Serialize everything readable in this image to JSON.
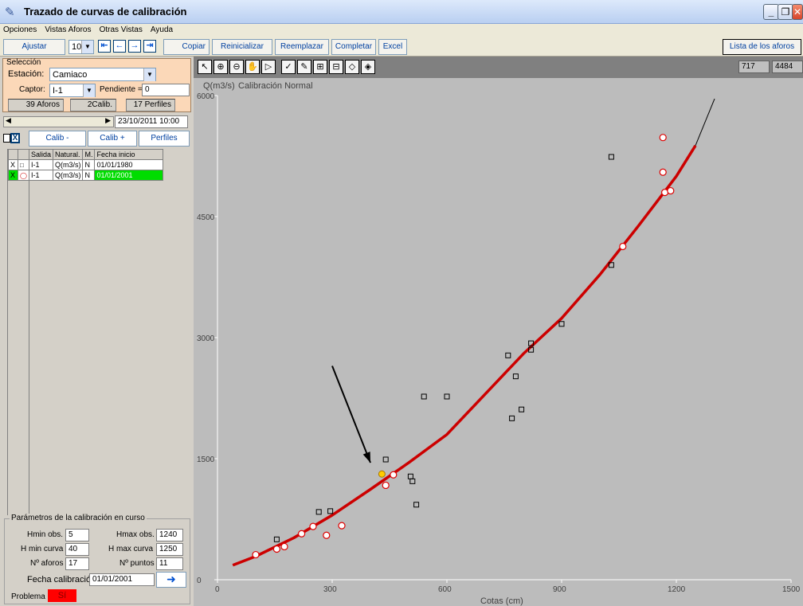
{
  "window": {
    "title": "Trazado de curvas de calibración"
  },
  "menu": [
    "Opciones",
    "Vistas Aforos",
    "Otras Vistas",
    "Ayuda"
  ],
  "toolbar": {
    "ajustar": "Ajustar",
    "step_value": "10",
    "copiar": "Copiar",
    "reinicializar": "Reinicializar",
    "reemplazar": "Reemplazar",
    "completar": "Completar",
    "excel": "Excel",
    "lista": "Lista de los aforos"
  },
  "seleccion": {
    "title": "Selección",
    "estacion_label": "Estación:",
    "estacion_value": "Camiaco",
    "captor_label": "Captor:",
    "captor_value": "I-1",
    "pendiente_label": "Pendiente =",
    "pendiente_value": "0",
    "aforos_count": "39",
    "aforos_label": "Aforos",
    "calib_count": "2",
    "calib_label": "Calib.",
    "perfiles_count": "17",
    "perfiles_label": "Perfiles"
  },
  "timeline": {
    "date": "23/10/2011 10:00"
  },
  "calib_buttons": {
    "minus": "Calib -",
    "plus": "Calib +",
    "perfiles": "Perfiles"
  },
  "table": {
    "headers": [
      "Salida",
      "Natural.",
      "M.",
      "Fecha inicio"
    ],
    "rows": [
      {
        "check": "X",
        "salida": "I-1",
        "natural": "Q(m3/s)",
        "m": "N",
        "fecha": "01/01/1980"
      },
      {
        "check": "X",
        "salida": "I-1",
        "natural": "Q(m3/s)",
        "m": "N",
        "fecha": "01/01/2001"
      }
    ]
  },
  "params": {
    "title": "Parámetros de la calibración en curso",
    "hmin_obs_label": "Hmin obs.",
    "hmin_obs": "5",
    "hmax_obs_label": "Hmax obs.",
    "hmax_obs": "1240",
    "hmin_curva_label": "H min curva",
    "hmin_curva": "40",
    "hmax_curva_label": "H max curva",
    "hmax_curva": "1250",
    "n_aforos_label": "Nº aforos",
    "n_aforos": "17",
    "n_puntos_label": "Nº puntos",
    "n_puntos": "11",
    "fecha_label": "Fecha calibración",
    "fecha": "01/01/2001",
    "problema_label": "Problema",
    "problema": "Sí"
  },
  "coords": {
    "x": "717",
    "y": "4484"
  },
  "colors": {
    "curve": "#cc0000",
    "problem": "#ff0000",
    "highlight": "#00dd00",
    "panel": "#fbd8b8"
  },
  "chart_data": {
    "type": "scatter",
    "title": "Calibración Normal",
    "ylabel": "Q(m3/s)",
    "xlabel": "Cotas (cm)",
    "xlim": [
      0,
      1500
    ],
    "ylim": [
      0,
      6000
    ],
    "xticks": [
      0,
      300,
      600,
      900,
      1200,
      1500
    ],
    "yticks": [
      0,
      1500,
      3000,
      4500,
      6000
    ],
    "grid": false,
    "curve": {
      "x": [
        40,
        100,
        200,
        300,
        400,
        500,
        600,
        700,
        800,
        900,
        1000,
        1100,
        1200,
        1250
      ],
      "y": [
        180,
        290,
        520,
        800,
        1120,
        1450,
        1800,
        2300,
        2800,
        3240,
        3780,
        4380,
        5000,
        5380
      ]
    },
    "extension": {
      "x": [
        1250,
        1300
      ],
      "y": [
        5380,
        5960
      ]
    },
    "series": [
      {
        "name": "01/01/1980",
        "marker": "square",
        "x": [
          155,
          265,
          295,
          440,
          505,
          510,
          520,
          540,
          600,
          760,
          770,
          780,
          795,
          820,
          820,
          900,
          1030,
          1030
        ],
        "y": [
          500,
          840,
          850,
          1490,
          1280,
          1220,
          930,
          2270,
          2270,
          2780,
          2000,
          2520,
          2110,
          2850,
          2930,
          3170,
          3900,
          5240
        ]
      },
      {
        "name": "01/01/2001",
        "marker": "circle",
        "x": [
          100,
          155,
          175,
          220,
          250,
          285,
          325,
          440,
          460,
          1060,
          1165,
          1165,
          1170,
          1185
        ],
        "y": [
          310,
          380,
          410,
          570,
          660,
          550,
          670,
          1170,
          1300,
          4130,
          5480,
          5050,
          4800,
          4820
        ]
      }
    ],
    "selected_point": {
      "x": 430,
      "y": 1310
    },
    "annotation_arrow": {
      "from": [
        300,
        2650
      ],
      "to": [
        400,
        1450
      ]
    }
  }
}
